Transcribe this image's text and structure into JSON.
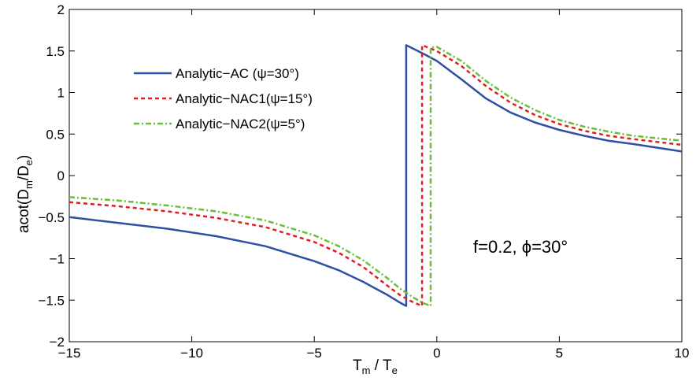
{
  "chart_data": {
    "type": "line",
    "xlim": [
      -15,
      10
    ],
    "ylim": [
      -2,
      2
    ],
    "x_ticks": [
      -15,
      -10,
      -5,
      0,
      5,
      10
    ],
    "x_tick_labels": [
      "−15",
      "−10",
      "−5",
      "0",
      "5",
      "10"
    ],
    "y_ticks": [
      -2,
      -1.5,
      -1,
      -0.5,
      0,
      0.5,
      1,
      1.5,
      2
    ],
    "y_tick_labels": [
      "−2",
      "−1.5",
      "−1",
      "−0.5",
      "0",
      "0.5",
      "1",
      "1.5",
      "2"
    ],
    "xlabel": {
      "main": "T",
      "sub1": "m",
      "mid": " / T",
      "sub2": "e"
    },
    "ylabel": {
      "main": "acot(D",
      "sub1": "m",
      "mid": "/D",
      "sub2": "e",
      "end": ")"
    },
    "annotation": "f=0.2, ϕ=30°",
    "grid": false,
    "legend_position": "top-left",
    "series": [
      {
        "name": "Analytic−AC (ψ=30°)",
        "color": "#2f4fa6",
        "style": "solid",
        "x": [
          -15,
          -13,
          -11,
          -9,
          -7,
          -5,
          -4,
          -3,
          -2.5,
          -2,
          -1.5,
          -1.25,
          -1.25,
          -0.5,
          0,
          1,
          2,
          3,
          4,
          5,
          6,
          7,
          8,
          10
        ],
        "y": [
          -0.5,
          -0.57,
          -0.64,
          -0.73,
          -0.85,
          -1.03,
          -1.14,
          -1.28,
          -1.36,
          -1.44,
          -1.53,
          -1.57,
          1.57,
          1.46,
          1.38,
          1.16,
          0.93,
          0.76,
          0.64,
          0.55,
          0.48,
          0.42,
          0.38,
          0.29
        ]
      },
      {
        "name": "Analytic−NAC1(ψ=15°)",
        "color": "#e02020",
        "style": "dashed",
        "x": [
          -15,
          -13,
          -11,
          -9,
          -7,
          -5,
          -4,
          -3,
          -2,
          -1.5,
          -1,
          -0.6,
          -0.6,
          0,
          1,
          2,
          3,
          4,
          5,
          6,
          7,
          8,
          10
        ],
        "y": [
          -0.32,
          -0.37,
          -0.43,
          -0.51,
          -0.62,
          -0.8,
          -0.93,
          -1.1,
          -1.33,
          -1.44,
          -1.52,
          -1.57,
          1.57,
          1.5,
          1.32,
          1.08,
          0.88,
          0.73,
          0.62,
          0.54,
          0.48,
          0.44,
          0.37
        ]
      },
      {
        "name": "Analytic−NAC2(ψ=5°)",
        "color": "#6abf3a",
        "style": "dashdot",
        "x": [
          -15,
          -13,
          -11,
          -9,
          -7,
          -5,
          -4,
          -3,
          -2,
          -1.5,
          -1,
          -0.6,
          -0.25,
          -0.25,
          0,
          1,
          2,
          3,
          4,
          5,
          6,
          7,
          8,
          10
        ],
        "y": [
          -0.26,
          -0.3,
          -0.36,
          -0.43,
          -0.54,
          -0.72,
          -0.85,
          -1.02,
          -1.24,
          -1.36,
          -1.46,
          -1.53,
          -1.57,
          1.54,
          1.55,
          1.38,
          1.14,
          0.94,
          0.79,
          0.67,
          0.59,
          0.53,
          0.48,
          0.42
        ]
      }
    ]
  }
}
